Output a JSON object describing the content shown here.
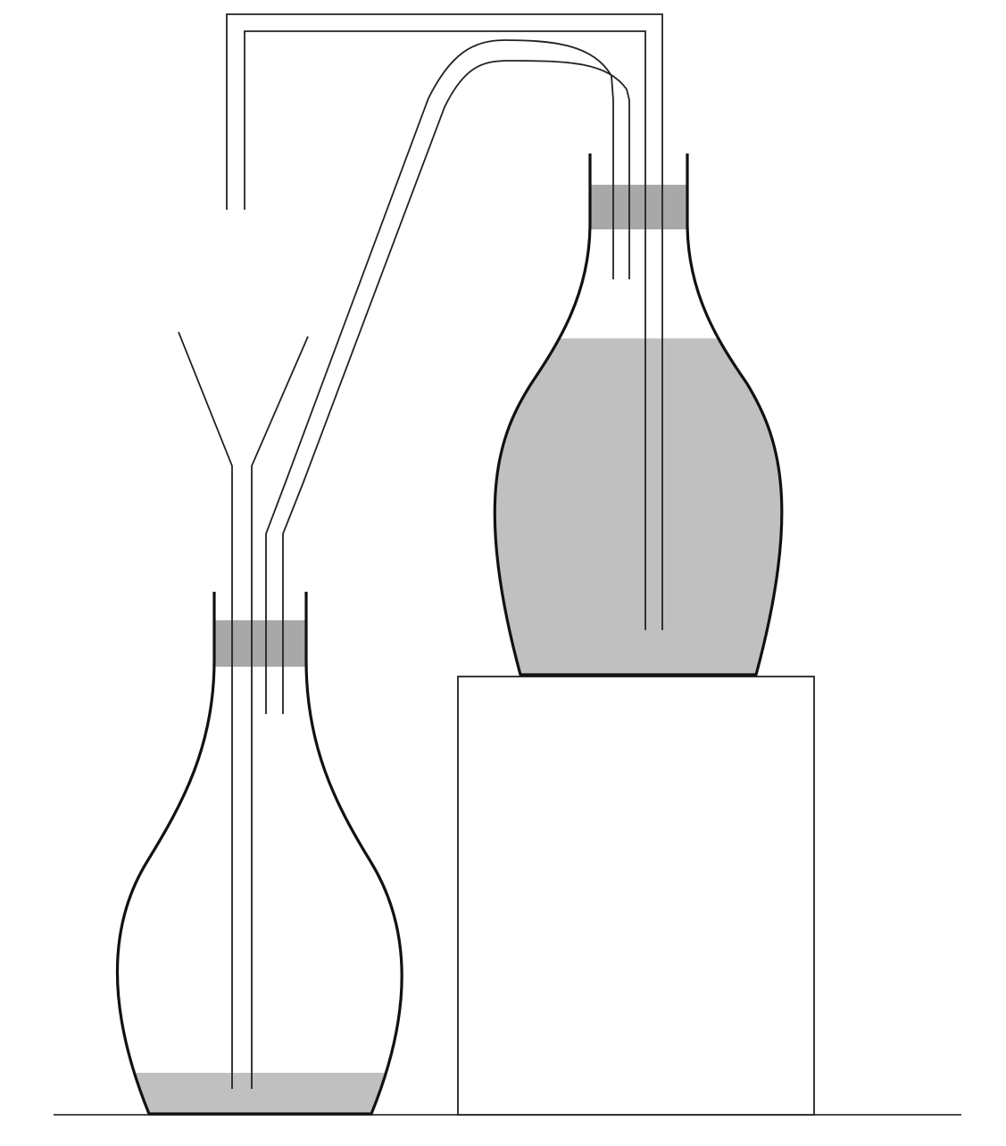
{
  "colors": {
    "background": "#ffffff",
    "outline": "#111111",
    "liquid": "#c0c0c0",
    "stopper": "#a8a8a8"
  },
  "diagram": {
    "lower_flask": {
      "liquid_level": 0.1
    },
    "upper_flask": {
      "liquid_level": 0.8
    }
  }
}
